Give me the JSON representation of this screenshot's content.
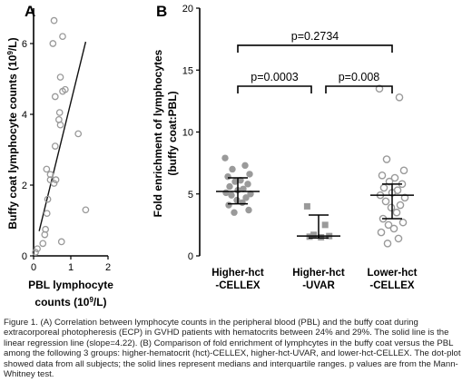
{
  "panel_a": {
    "letter": "A",
    "xlabel_line1": "PBL lymphocyte",
    "xlabel_line2_pre": "counts (10",
    "xlabel_sup": "9",
    "xlabel_line2_post": "/L)",
    "ylabel_pre": "Buffy coat lymphocyte counts (10",
    "ylabel_sup": "9",
    "ylabel_post": "/L)"
  },
  "panel_b": {
    "letter": "B",
    "ylabel_line1": "Fold enrichment of lymphocytes",
    "ylabel_line2": "(buffy coat:PBL)",
    "group_labels": [
      [
        "Higher-hct",
        "-CELLEX"
      ],
      [
        "Higher-hct",
        "-UVAR"
      ],
      [
        "Lower-hct",
        "-CELLEX"
      ]
    ],
    "pvalues": [
      "p=0.2734",
      "p=0.0003",
      "p=0.008"
    ]
  },
  "chart_data": [
    {
      "type": "scatter",
      "title": "",
      "xlabel": "PBL lymphocyte counts (10^9/L)",
      "ylabel": "Buffy coat lymphocyte counts (10^9/L)",
      "xlim": [
        0,
        2
      ],
      "ylim": [
        0,
        7
      ],
      "xticks": [
        0,
        1,
        2
      ],
      "yticks": [
        0,
        2,
        4,
        6
      ],
      "marker": "open-circle",
      "points": [
        [
          0.55,
          6.65
        ],
        [
          0.52,
          6.0
        ],
        [
          0.78,
          6.2
        ],
        [
          0.72,
          5.05
        ],
        [
          0.58,
          4.5
        ],
        [
          0.78,
          4.65
        ],
        [
          0.85,
          4.7
        ],
        [
          0.7,
          4.05
        ],
        [
          0.68,
          3.85
        ],
        [
          0.72,
          3.7
        ],
        [
          1.2,
          3.45
        ],
        [
          0.58,
          3.1
        ],
        [
          0.45,
          2.15
        ],
        [
          0.55,
          2.05
        ],
        [
          0.6,
          2.15
        ],
        [
          0.35,
          2.45
        ],
        [
          0.45,
          2.3
        ],
        [
          0.38,
          1.6
        ],
        [
          0.36,
          1.2
        ],
        [
          0.32,
          0.75
        ],
        [
          0.25,
          0.35
        ],
        [
          0.3,
          0.6
        ],
        [
          0.1,
          0.2
        ],
        [
          0.05,
          0.1
        ],
        [
          0.75,
          0.4
        ],
        [
          1.4,
          1.3
        ]
      ],
      "regression_line": [
        [
          0.15,
          0.7
        ],
        [
          1.4,
          6.05
        ]
      ],
      "regression_color": "#111111",
      "marker_color": "#999999"
    },
    {
      "type": "scatter",
      "title": "",
      "ylabel": "Fold enrichment of lymphocytes (buffy coat:PBL)",
      "ylim": [
        0,
        20
      ],
      "yticks": [
        0,
        5,
        10,
        15,
        20
      ],
      "categories": [
        "Higher-hct -CELLEX",
        "Higher-hct -UVAR",
        "Lower-hct -CELLEX"
      ],
      "series": [
        {
          "name": "Higher-hct -CELLEX",
          "marker": "circle",
          "color": "#9a9a9a",
          "median": 5.2,
          "q1": 4.2,
          "q3": 6.3,
          "values": [
            7.9,
            7.3,
            7.0,
            6.6,
            6.4,
            6.1,
            6.0,
            5.8,
            5.6,
            5.4,
            5.3,
            5.1,
            5.0,
            4.9,
            4.7,
            4.5,
            4.3,
            4.1,
            3.7,
            3.5
          ]
        },
        {
          "name": "Higher-hct -UVAR",
          "marker": "square",
          "color": "#9a9a9a",
          "median": 1.6,
          "q1": 1.45,
          "q3": 3.3,
          "values": [
            4.0,
            2.5,
            1.7,
            1.6,
            1.55,
            1.5
          ]
        },
        {
          "name": "Lower-hct -CELLEX",
          "marker": "open-circle",
          "color": "#9a9a9a",
          "median": 4.9,
          "q1": 3.0,
          "q3": 5.8,
          "values": [
            13.5,
            12.8,
            7.8,
            6.9,
            6.5,
            6.3,
            6.0,
            5.8,
            5.5,
            5.3,
            5.1,
            4.9,
            4.7,
            4.4,
            4.1,
            3.9,
            3.5,
            3.0,
            2.7,
            2.5,
            2.2,
            1.9,
            1.4,
            1.0
          ]
        }
      ],
      "comparisons": [
        {
          "from": 0,
          "to": 2,
          "label": "p=0.2734",
          "y": 17.0
        },
        {
          "from": 0,
          "to": 1,
          "label": "p=0.0003",
          "y": 13.7
        },
        {
          "from": 1,
          "to": 2,
          "label": "p=0.008",
          "y": 13.7
        }
      ]
    }
  ],
  "caption": "Figure 1. (A) Correlation between lymphocyte counts in the peripheral blood (PBL) and the buffy coat during extracorporeal photopheresis (ECP) in GVHD patients with hematocrits between 24% and 29%. The solid line is the linear regression line (slope=4.22). (B) Comparison of fold enrichment of lymphcytes in the buffy coat versus the PBL among the following 3 groups: higher-hematocrit (hct)-CELLEX, higher-hct-UVAR, and lower-hct-CELLEX. The dot-plot showed data from all subjects; the solid lines represent medians and interquartile ranges. p values are from the Mann-Whitney test."
}
